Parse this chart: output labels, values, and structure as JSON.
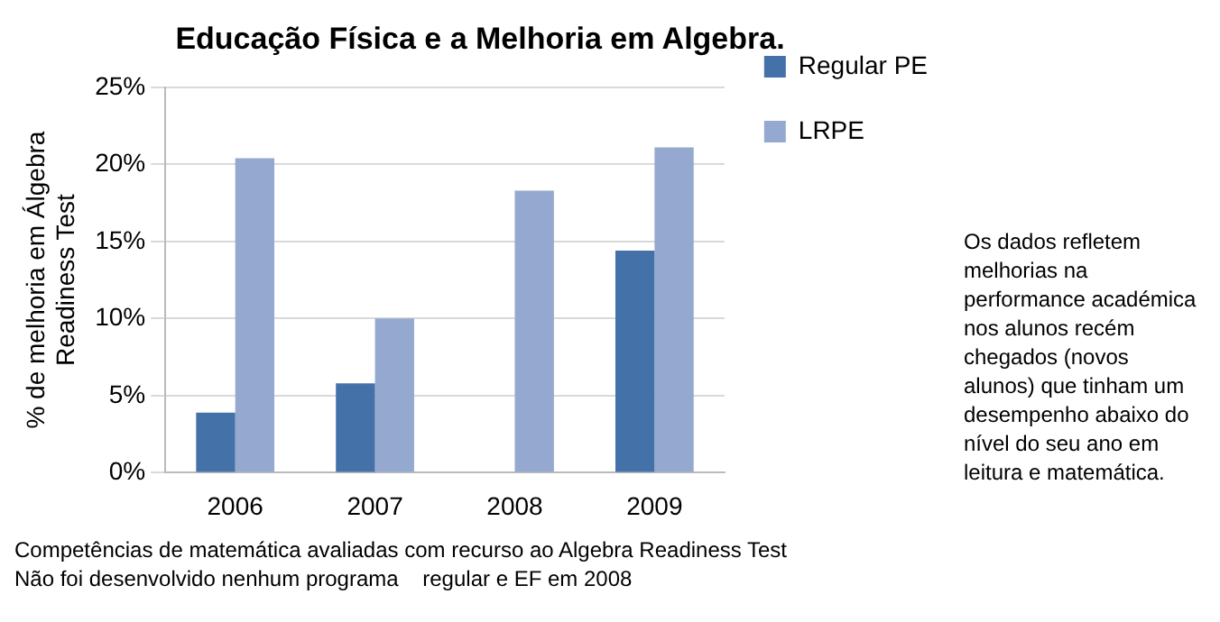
{
  "chart_data": {
    "type": "bar",
    "title": "Educação Física e a Melhoria em Algebra.",
    "ylabel": "% de melhoria em Álgebra\nReadiness Test",
    "categories": [
      "2006",
      "2007",
      "2008",
      "2009"
    ],
    "series": [
      {
        "name": "Regular PE",
        "color": "#4472a8",
        "values": [
          3.9,
          5.8,
          null,
          14.4
        ]
      },
      {
        "name": "LRPE",
        "color": "#95a9d0",
        "values": [
          20.4,
          10.0,
          18.3,
          21.1
        ]
      }
    ],
    "ylim": [
      0,
      25
    ],
    "yticks": [
      {
        "value": 0,
        "label": "0%"
      },
      {
        "value": 5,
        "label": "5%"
      },
      {
        "value": 10,
        "label": "10%"
      },
      {
        "value": 15,
        "label": "15%"
      },
      {
        "value": 20,
        "label": "20%"
      },
      {
        "value": 25,
        "label": "25%"
      }
    ],
    "grid": "y",
    "legend": "top right",
    "annotations": [
      "Os dados refletem melhorias na performance académica nos alunos recém chegados (novos alunos) que tinham um desempenho abaixo do nível do seu ano em leitura e matemática.",
      "Competências de matemática avaliadas com recurso ao Algebra Readiness Test",
      "Não foi desenvolvido nenhum programa    regular e EF em 2008"
    ]
  }
}
